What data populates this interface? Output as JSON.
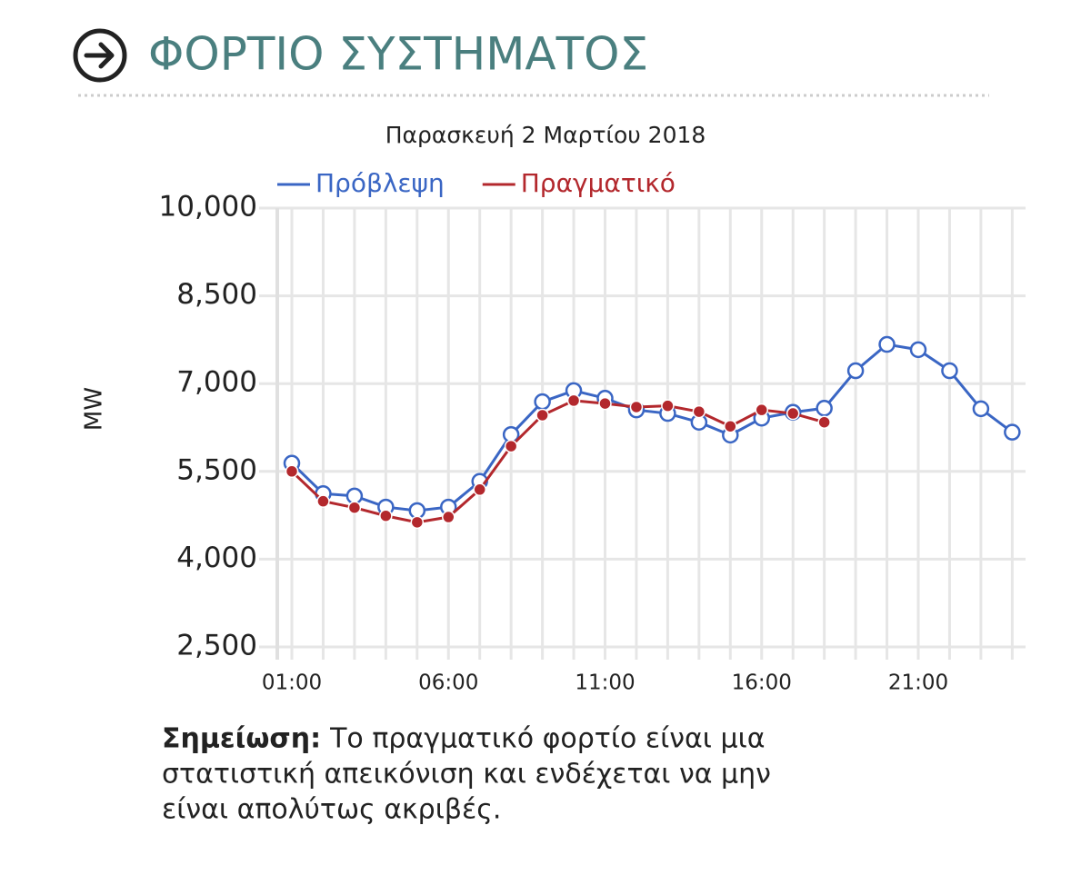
{
  "header": {
    "title": "ΦΟΡΤΙΟ ΣΥΣΤΗΜΑΤΟΣ"
  },
  "chart_data": {
    "type": "line",
    "subtitle": "Παρασκευή 2 Μαρτίου 2018",
    "ylabel": "MW",
    "categories": [
      "01:00",
      null,
      null,
      null,
      null,
      "06:00",
      null,
      null,
      null,
      null,
      "11:00",
      null,
      null,
      null,
      null,
      "16:00",
      null,
      null,
      null,
      null,
      "21:00",
      null,
      null,
      null
    ],
    "series": [
      {
        "name": "Πρόβλεψη",
        "color": "#3a66c4",
        "marker": "open",
        "values": [
          5640,
          5120,
          5080,
          4890,
          4830,
          4890,
          5330,
          6130,
          6690,
          6880,
          6750,
          6550,
          6490,
          6340,
          6120,
          6410,
          6510,
          6580,
          7220,
          7670,
          7580,
          7220,
          6570,
          6170
        ]
      },
      {
        "name": "Πραγματικό",
        "color": "#b3282d",
        "marker": "filled",
        "values": [
          5500,
          4990,
          4880,
          4740,
          4630,
          4720,
          5190,
          5930,
          6460,
          6710,
          6660,
          6600,
          6620,
          6520,
          6270,
          6550,
          6490,
          6340,
          null,
          null,
          null,
          null,
          null,
          null
        ]
      }
    ],
    "ylim": [
      2500,
      10000
    ],
    "yticks": [
      {
        "value": 2500,
        "label": "2,500"
      },
      {
        "value": 4000,
        "label": "4,000"
      },
      {
        "value": 5500,
        "label": "5,500"
      },
      {
        "value": 7000,
        "label": "7,000"
      },
      {
        "value": 8500,
        "label": "8,500"
      },
      {
        "value": 10000,
        "label": "10,000"
      }
    ],
    "grid": true
  },
  "note": {
    "label": "Σημείωση:",
    "lines": [
      "Το πραγματικό φορτίο είναι μια",
      "στατιστική απεικόνιση και ενδέχεται να μην",
      "είναι απολύτως ακριβές."
    ]
  }
}
